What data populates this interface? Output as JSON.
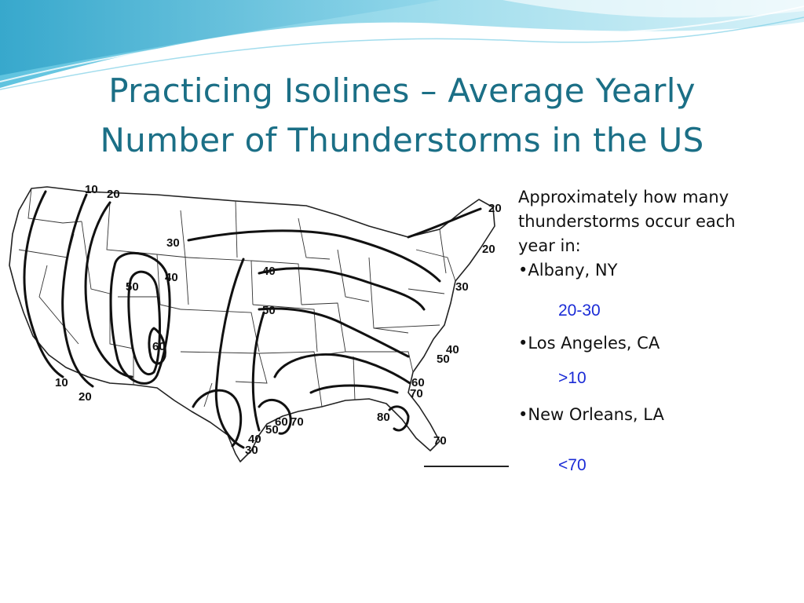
{
  "slide": {
    "title_line1": "Practicing Isolines – Average Yearly",
    "title_line2": "Number of Thunderstorms in the US"
  },
  "map": {
    "isoline_labels": {
      "nw_10": "10",
      "nw_20": "20",
      "w_30": "30",
      "c_40a": "40",
      "c_50a": "50",
      "c_60": "60",
      "mid_40": "40",
      "mid_50": "50",
      "ne_20a": "20",
      "ne_20b": "20",
      "e_30": "30",
      "e_40": "40",
      "e_50": "50",
      "se_60": "60",
      "se_70": "70",
      "fl_80": "80",
      "fl_70": "70",
      "sw_10": "10",
      "sw_20": "20",
      "tx_40": "40",
      "tx_30": "30",
      "tx_50": "50",
      "tx_60": "60",
      "tx_70": "70"
    }
  },
  "question": {
    "prompt_line1": "Approximately how many",
    "prompt_line2": "thunderstorms occur each",
    "prompt_line3": "year in:",
    "items": [
      {
        "bullet": "•",
        "place": "Albany, NY",
        "answer": "20-30"
      },
      {
        "bullet": "•",
        "place": "Los Angeles, CA",
        "answer": ">10"
      },
      {
        "bullet": "•",
        "place": "New Orleans, LA",
        "answer": "<70"
      }
    ]
  }
}
